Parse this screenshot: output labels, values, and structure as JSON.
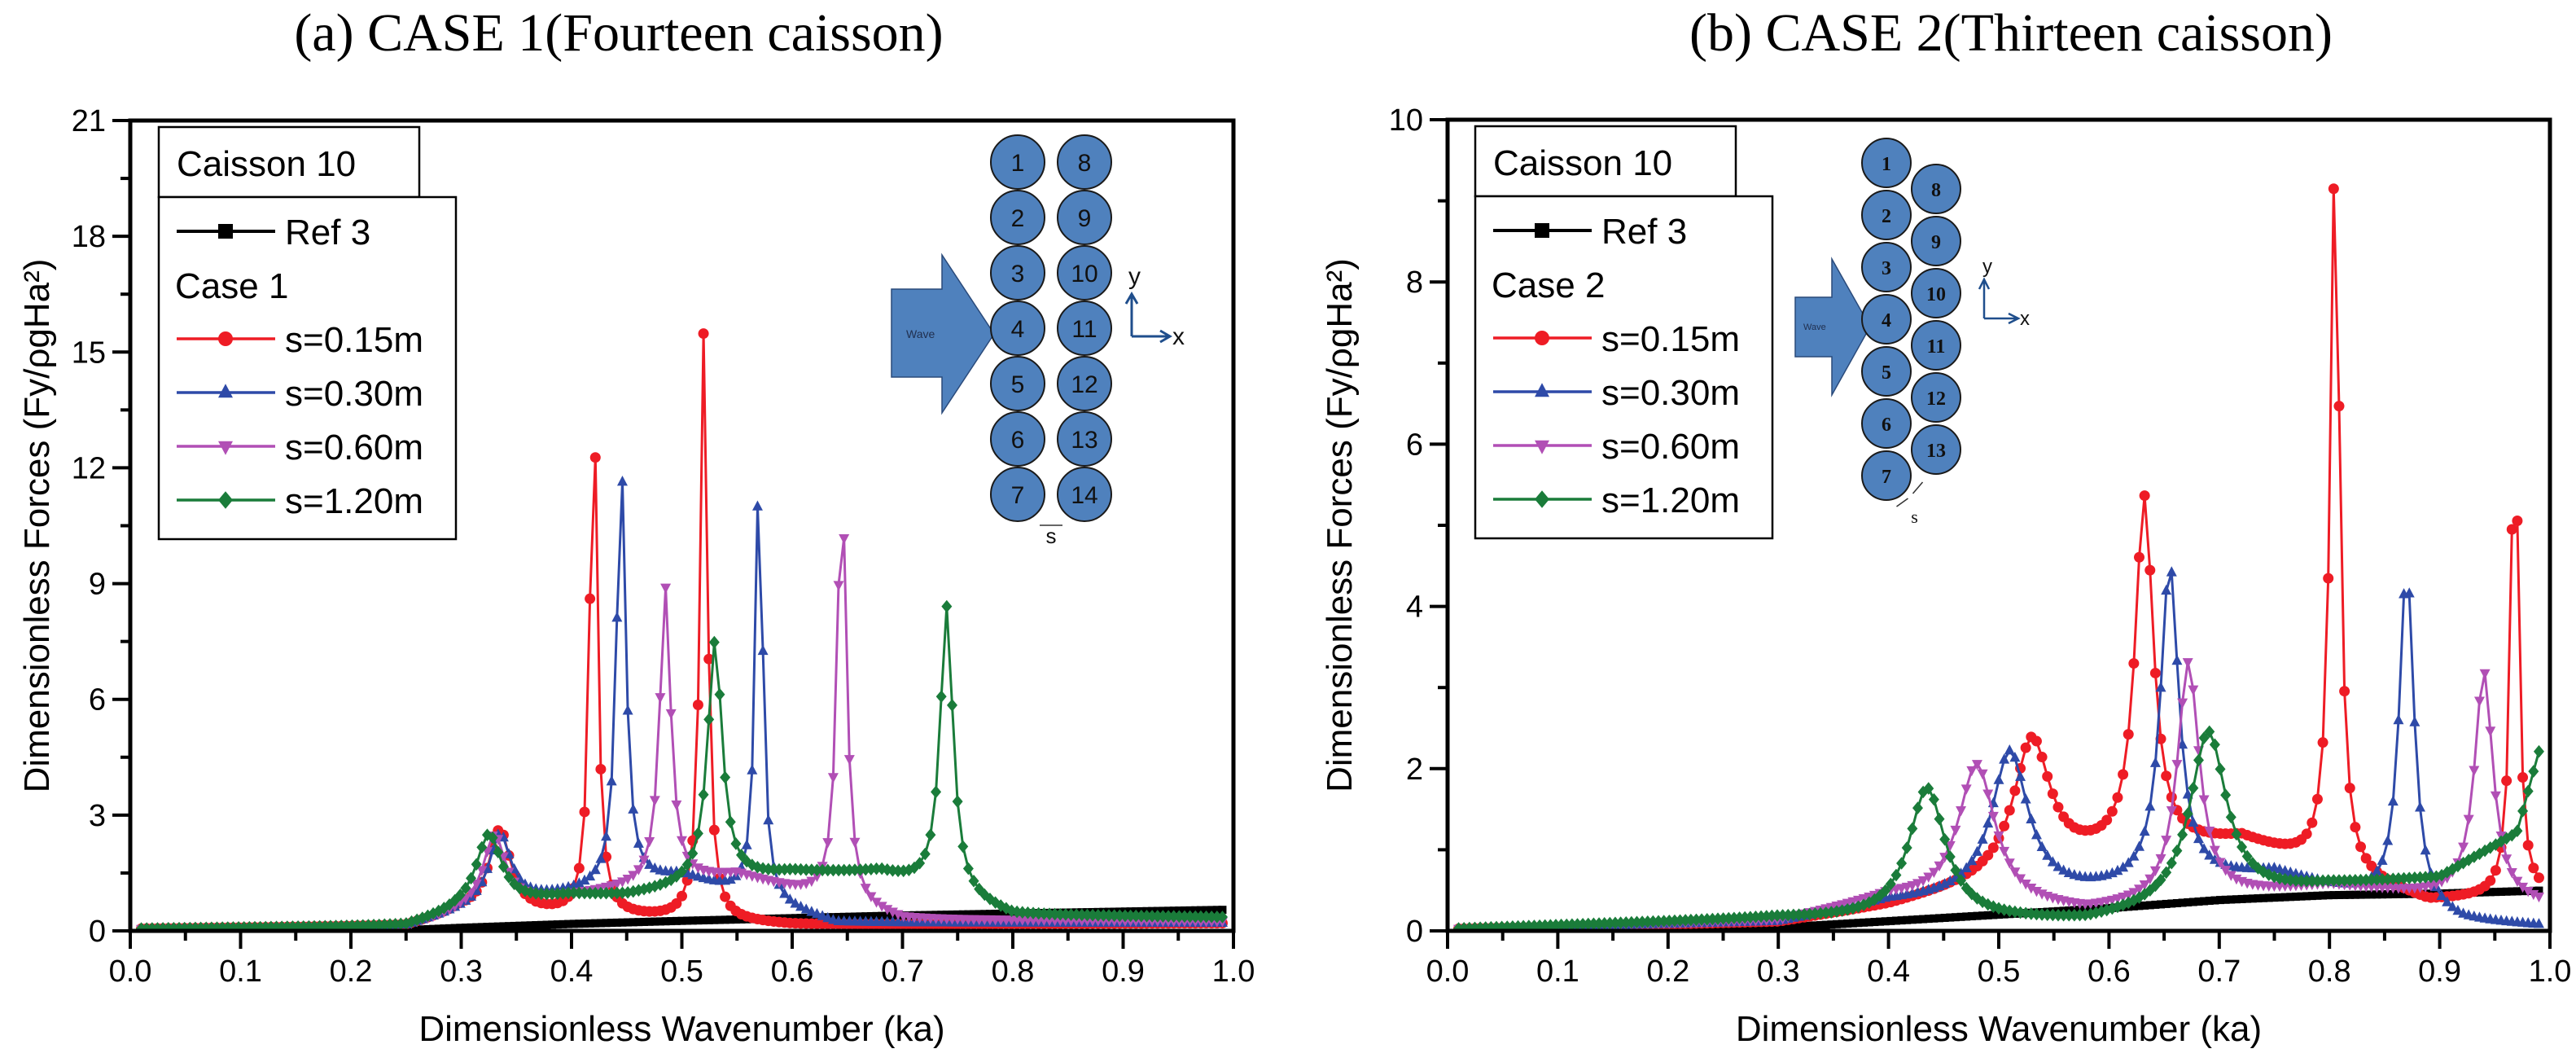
{
  "figure": {
    "caption_a": "(a) CASE 1(Fourteen caisson)",
    "caption_b": "(b) CASE 2(Thirteen caisson)"
  },
  "chart_data": [
    {
      "id": "case1",
      "type": "line",
      "title": "(a) CASE 1(Fourteen caisson)",
      "xlabel": "Dimensionless Wavenumber (ka)",
      "ylabel": "Dimensionless Forces (Fy/ρgHa²)",
      "xlim": [
        0,
        1.0
      ],
      "ylim": [
        0,
        21
      ],
      "xticks": [
        0.0,
        0.1,
        0.2,
        0.3,
        0.4,
        0.5,
        0.6,
        0.7,
        0.8,
        0.9,
        1.0
      ],
      "xtick_labels": [
        "0.0",
        "0.1",
        "0.2",
        "0.3",
        "0.4",
        "0.5",
        "0.6",
        "0.7",
        "0.8",
        "0.9",
        "1.0"
      ],
      "yticks": [
        0,
        3,
        6,
        9,
        12,
        15,
        18,
        21
      ],
      "ytick_labels": [
        "0",
        "3",
        "6",
        "9",
        "12",
        "15",
        "18",
        "21"
      ],
      "grid": false,
      "legend_title_box": "Caisson 10",
      "legend_group_label": "Case 1",
      "legend_position": "top-left",
      "inset": {
        "type": "caisson-layout",
        "wave_label": "Wave",
        "left_column": [
          "1",
          "2",
          "3",
          "4",
          "5",
          "6",
          "7"
        ],
        "right_column": [
          "8",
          "9",
          "10",
          "11",
          "12",
          "13",
          "14"
        ],
        "axis_x": "x",
        "axis_y": "y",
        "gap_label": "s",
        "staggered": false
      },
      "series": [
        {
          "name": "Ref 3",
          "color": "#000000",
          "marker": "square",
          "points": [
            [
              0.0,
              0.0
            ],
            [
              0.25,
              0.02
            ],
            [
              0.3,
              0.08
            ],
            [
              0.4,
              0.18
            ],
            [
              0.5,
              0.26
            ],
            [
              0.6,
              0.33
            ],
            [
              0.7,
              0.4
            ],
            [
              0.8,
              0.45
            ],
            [
              0.9,
              0.5
            ],
            [
              1.0,
              0.55
            ]
          ]
        },
        {
          "name": "s=0.15m",
          "color": "#ee1c25",
          "marker": "circle",
          "peaks": [
            [
              0.335,
              2.6,
              0.012
            ],
            [
              0.42,
              14.1,
              0.004
            ],
            [
              0.52,
              15.6,
              0.004
            ]
          ],
          "baseline": [
            [
              0.0,
              0.05
            ],
            [
              0.25,
              0.12
            ],
            [
              0.3,
              0.5
            ],
            [
              0.6,
              0.15
            ],
            [
              1.0,
              0.2
            ]
          ]
        },
        {
          "name": "s=0.30m",
          "color": "#2e4aa8",
          "marker": "triangle-up",
          "peaks": [
            [
              0.335,
              2.5,
              0.012
            ],
            [
              0.445,
              12.1,
              0.005
            ],
            [
              0.57,
              12.2,
              0.004
            ]
          ],
          "baseline": [
            [
              0.0,
              0.05
            ],
            [
              0.25,
              0.12
            ],
            [
              0.3,
              0.5
            ],
            [
              0.5,
              1.4
            ],
            [
              0.64,
              0.2
            ],
            [
              1.0,
              0.2
            ]
          ]
        },
        {
          "name": "s=0.60m",
          "color": "#b14fb5",
          "marker": "triangle-down",
          "peaks": [
            [
              0.33,
              2.5,
              0.012
            ],
            [
              0.485,
              8.9,
              0.006
            ],
            [
              0.645,
              11.7,
              0.005
            ]
          ],
          "baseline": [
            [
              0.0,
              0.05
            ],
            [
              0.25,
              0.12
            ],
            [
              0.3,
              0.5
            ],
            [
              0.45,
              1.1
            ],
            [
              0.55,
              1.45
            ],
            [
              0.7,
              0.3
            ],
            [
              1.0,
              0.25
            ]
          ]
        },
        {
          "name": "s=1.20m",
          "color": "#1a7c3a",
          "marker": "diamond",
          "peaks": [
            [
              0.325,
              2.5,
              0.014
            ],
            [
              0.53,
              7.5,
              0.008
            ],
            [
              0.74,
              8.4,
              0.007
            ]
          ],
          "baseline": [
            [
              0.0,
              0.05
            ],
            [
              0.25,
              0.12
            ],
            [
              0.3,
              0.5
            ],
            [
              0.4,
              0.9
            ],
            [
              0.45,
              0.9
            ],
            [
              0.6,
              1.5
            ],
            [
              0.68,
              1.5
            ],
            [
              0.8,
              0.4
            ],
            [
              1.0,
              0.35
            ]
          ]
        }
      ]
    },
    {
      "id": "case2",
      "type": "line",
      "title": "(b) CASE 2(Thirteen caisson)",
      "xlabel": "Dimensionless Wavenumber (ka)",
      "ylabel": "Dimensionless Forces (Fy/ρgHa²)",
      "xlim": [
        0,
        1.0
      ],
      "ylim": [
        0,
        10
      ],
      "xticks": [
        0.0,
        0.1,
        0.2,
        0.3,
        0.4,
        0.5,
        0.6,
        0.7,
        0.8,
        0.9,
        1.0
      ],
      "xtick_labels": [
        "0.0",
        "0.1",
        "0.2",
        "0.3",
        "0.4",
        "0.5",
        "0.6",
        "0.7",
        "0.8",
        "0.9",
        "1.0"
      ],
      "yticks": [
        0,
        2,
        4,
        6,
        8,
        10
      ],
      "ytick_labels": [
        "0",
        "2",
        "4",
        "6",
        "8",
        "10"
      ],
      "grid": false,
      "legend_title_box": "Caisson 10",
      "legend_group_label": "Case 2",
      "legend_position": "top-left",
      "inset": {
        "type": "caisson-layout",
        "wave_label": "Wave",
        "left_column": [
          "1",
          "2",
          "3",
          "4",
          "5",
          "6",
          "7"
        ],
        "right_column": [
          "8",
          "9",
          "10",
          "11",
          "12",
          "13"
        ],
        "axis_x": "x",
        "axis_y": "y",
        "gap_label": "s",
        "staggered": true
      },
      "series": [
        {
          "name": "Ref 3",
          "color": "#000000",
          "marker": "square",
          "points": [
            [
              0.0,
              0.0
            ],
            [
              0.3,
              0.04
            ],
            [
              0.4,
              0.12
            ],
            [
              0.5,
              0.2
            ],
            [
              0.6,
              0.28
            ],
            [
              0.7,
              0.38
            ],
            [
              0.8,
              0.44
            ],
            [
              0.9,
              0.46
            ],
            [
              1.0,
              0.5
            ]
          ]
        },
        {
          "name": "s=0.15m",
          "color": "#ee1c25",
          "marker": "circle",
          "peaks": [
            [
              0.53,
              2.35,
              0.02
            ],
            [
              0.632,
              5.3,
              0.01
            ],
            [
              0.805,
              9.6,
              0.005
            ],
            [
              0.968,
              6.7,
              0.004
            ]
          ],
          "baseline": [
            [
              0.0,
              0.02
            ],
            [
              0.3,
              0.1
            ],
            [
              0.4,
              0.3
            ],
            [
              0.58,
              0.85
            ],
            [
              0.72,
              1.1
            ],
            [
              0.89,
              0.35
            ],
            [
              1.0,
              0.45
            ]
          ]
        },
        {
          "name": "s=0.30m",
          "color": "#2e4aa8",
          "marker": "triangle-up",
          "peaks": [
            [
              0.51,
              2.2,
              0.02
            ],
            [
              0.655,
              4.5,
              0.01
            ],
            [
              0.87,
              4.5,
              0.008
            ]
          ],
          "baseline": [
            [
              0.0,
              0.02
            ],
            [
              0.3,
              0.1
            ],
            [
              0.4,
              0.35
            ],
            [
              0.58,
              0.45
            ],
            [
              0.75,
              0.7
            ],
            [
              0.92,
              0.1
            ],
            [
              1.0,
              0.05
            ]
          ]
        },
        {
          "name": "s=0.60m",
          "color": "#b14fb5",
          "marker": "triangle-down",
          "peaks": [
            [
              0.48,
              2.05,
              0.02
            ],
            [
              0.672,
              3.3,
              0.012
            ],
            [
              0.94,
              3.2,
              0.01
            ]
          ],
          "baseline": [
            [
              0.0,
              0.02
            ],
            [
              0.3,
              0.12
            ],
            [
              0.4,
              0.4
            ],
            [
              0.58,
              0.22
            ],
            [
              0.8,
              0.55
            ],
            [
              1.0,
              0.3
            ]
          ]
        },
        {
          "name": "s=1.20m",
          "color": "#1a7c3a",
          "marker": "diamond",
          "peaks": [
            [
              0.435,
              1.75,
              0.02
            ],
            [
              0.69,
              2.45,
              0.02
            ]
          ],
          "baseline": [
            [
              0.0,
              0.02
            ],
            [
              0.3,
              0.15
            ],
            [
              0.58,
              0.1
            ],
            [
              0.8,
              0.55
            ],
            [
              0.9,
              0.65
            ],
            [
              0.97,
              1.2
            ],
            [
              1.0,
              2.7
            ]
          ]
        }
      ]
    }
  ]
}
